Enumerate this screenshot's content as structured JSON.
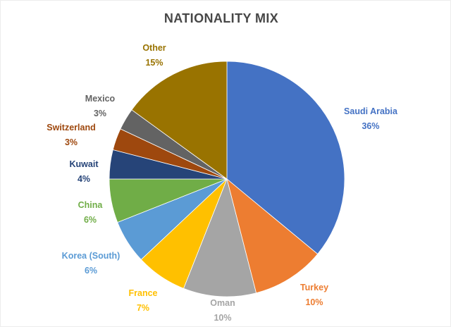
{
  "title": "NATIONALITY MIX",
  "chart_data": {
    "type": "pie",
    "title": "NATIONALITY MIX",
    "direction": "clockwise",
    "start_angle_deg": 0,
    "total": 100,
    "unit": "%",
    "legend_position": "none",
    "slices": [
      {
        "label": "Saudi Arabia",
        "value": 36,
        "pct_label": "36%",
        "color": "#4472C4"
      },
      {
        "label": "Turkey",
        "value": 10,
        "pct_label": "10%",
        "color": "#ED7D31"
      },
      {
        "label": "Oman",
        "value": 10,
        "pct_label": "10%",
        "color": "#A5A5A5"
      },
      {
        "label": "France",
        "value": 7,
        "pct_label": "7%",
        "color": "#FFC000"
      },
      {
        "label": "Korea (South)",
        "value": 6,
        "pct_label": "6%",
        "color": "#5B9BD5"
      },
      {
        "label": "China",
        "value": 6,
        "pct_label": "6%",
        "color": "#70AD47"
      },
      {
        "label": "Kuwait",
        "value": 4,
        "pct_label": "4%",
        "color": "#264478"
      },
      {
        "label": "Switzerland",
        "value": 3,
        "pct_label": "3%",
        "color": "#9E480E"
      },
      {
        "label": "Mexico",
        "value": 3,
        "pct_label": "3%",
        "color": "#636363"
      },
      {
        "label": "Other",
        "value": 15,
        "pct_label": "15%",
        "color": "#997300"
      }
    ]
  }
}
